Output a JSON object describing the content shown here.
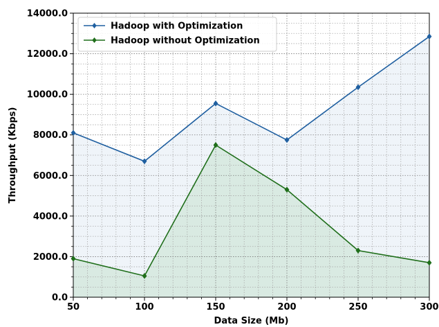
{
  "chart_data": {
    "type": "line",
    "title": "",
    "xlabel": "Data Size (Mb)",
    "ylabel": "Throughput (Kbps)",
    "x": [
      50,
      100,
      150,
      200,
      250,
      300
    ],
    "x_ticks": [
      "50",
      "100",
      "150",
      "200",
      "250",
      "300"
    ],
    "y_ticks": [
      "0.0",
      "2000.0",
      "4000.0",
      "6000.0",
      "8000.0",
      "10000.0",
      "12000.0",
      "14000.0"
    ],
    "xlim": [
      50,
      300
    ],
    "ylim": [
      0,
      14000
    ],
    "grid": true,
    "legend_position": "top-left",
    "series": [
      {
        "name": "Hadoop with Optimization",
        "color": "#1f5fa0",
        "fill": "#dbe7f2",
        "marker": "diamond",
        "values": [
          8100,
          6700,
          9550,
          7750,
          10350,
          12850
        ]
      },
      {
        "name": "Hadoop without Optimization",
        "color": "#1f6e1a",
        "fill": "#c9e2d2",
        "marker": "diamond",
        "values": [
          1900,
          1050,
          7500,
          5300,
          2300,
          1700
        ]
      }
    ]
  }
}
